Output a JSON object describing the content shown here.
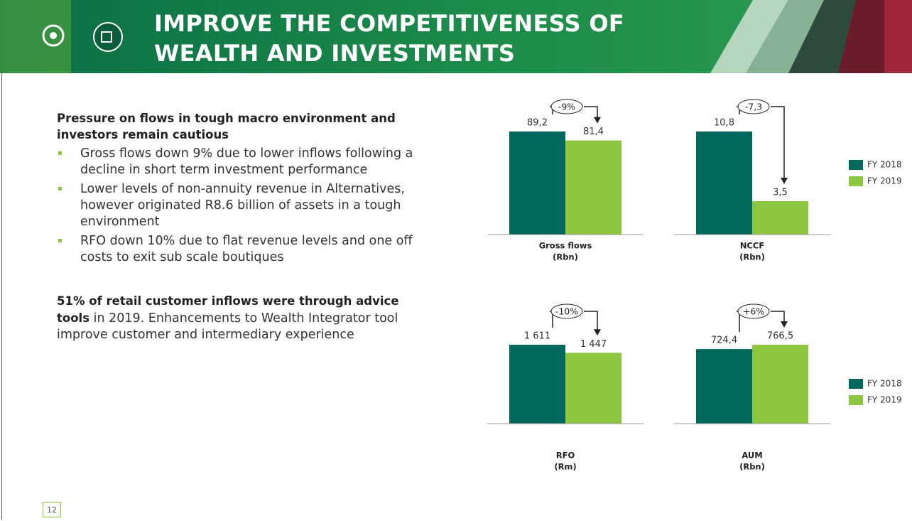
{
  "header": {
    "title_lines": [
      "IMPROVE THE COMPETITIVENESS OF",
      "WEALTH AND INVESTMENTS"
    ]
  },
  "body": {
    "heading": "Pressure on flows in tough macro environment and investors remain cautious",
    "bullets": [
      "Gross flows down 9% due to lower inflows following a decline in short term investment performance",
      "Lower levels of non-annuity revenue in Alternatives, however originated R8.6 billion of assets in a tough environment",
      "RFO down 10% due to flat revenue levels and one off costs to exit sub scale boutiques"
    ],
    "advice_bold": "51% of retail customer inflows were through advice tools",
    "advice_text": "in 2019. Enhancements to Wealth Integrator tool improve customer and intermediary experience"
  },
  "page_number": "12",
  "chart_data": [
    {
      "type": "bar",
      "title": "Gross flows",
      "subtitle": "(Rbn)",
      "annotation": "-9%",
      "series": [
        {
          "name": "FY 2018",
          "color": "#00695c",
          "values": [
            89.2
          ],
          "value_labels": [
            "89,2"
          ]
        },
        {
          "name": "FY 2019",
          "color": "#8dc63f",
          "values": [
            81.4
          ],
          "value_labels": [
            "81,4"
          ]
        }
      ]
    },
    {
      "type": "bar",
      "title": "NCCF",
      "subtitle": "(Rbn)",
      "annotation": "-7,3",
      "series": [
        {
          "name": "FY 2018",
          "color": "#00695c",
          "values": [
            10.8
          ],
          "value_labels": [
            "10,8"
          ]
        },
        {
          "name": "FY 2019",
          "color": "#8dc63f",
          "values": [
            3.5
          ],
          "value_labels": [
            "3,5"
          ]
        }
      ]
    },
    {
      "type": "bar",
      "title": "RFO",
      "subtitle": "(Rm)",
      "annotation": "-10%",
      "series": [
        {
          "name": "FY 2018",
          "color": "#00695c",
          "values": [
            1611
          ],
          "value_labels": [
            "1 611"
          ]
        },
        {
          "name": "FY 2019",
          "color": "#8dc63f",
          "values": [
            1447
          ],
          "value_labels": [
            "1 447"
          ]
        }
      ]
    },
    {
      "type": "bar",
      "title": "AUM",
      "subtitle": "(Rbn)",
      "annotation": "+6%",
      "series": [
        {
          "name": "FY 2018",
          "color": "#00695c",
          "values": [
            724.4
          ],
          "value_labels": [
            "724,4"
          ]
        },
        {
          "name": "FY 2019",
          "color": "#8dc63f",
          "values": [
            766.5
          ],
          "value_labels": [
            "766,5"
          ]
        }
      ]
    }
  ]
}
